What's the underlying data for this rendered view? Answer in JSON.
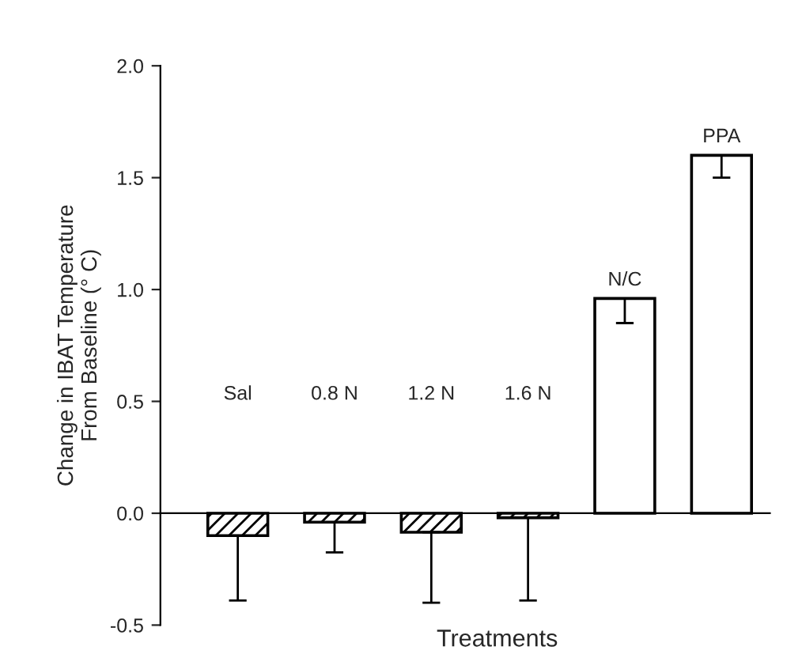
{
  "chart_data": {
    "type": "bar",
    "xlabel": "Treatments",
    "ylabel": "Change in IBAT Temperature\nFrom Baseline (° C)",
    "categories": [
      "Sal",
      "0.8 N",
      "1.2 N",
      "1.6 N",
      "N/C",
      "PPA"
    ],
    "values": [
      -0.1,
      -0.04,
      -0.085,
      -0.02,
      0.96,
      1.6
    ],
    "errors": [
      [
        -0.39,
        -0.1
      ],
      [
        -0.175,
        -0.04
      ],
      [
        -0.4,
        -0.085
      ],
      [
        -0.39,
        -0.02
      ],
      [
        0.85,
        0.96
      ],
      [
        1.5,
        1.6
      ]
    ],
    "colors": [
      "#000000",
      "#000000",
      "#000000",
      "#000000",
      "#ffffff",
      "#ffffff"
    ],
    "ylim": [
      -0.5,
      2.0
    ],
    "yticks": [
      {
        "value": -0.5,
        "label": "-0.5"
      },
      {
        "value": 0,
        "label": "0.0"
      },
      {
        "value": 0.5,
        "label": "0.5"
      },
      {
        "value": 1,
        "label": "1.0"
      },
      {
        "value": 1.5,
        "label": "1.5"
      },
      {
        "value": 2,
        "label": "2.0"
      }
    ],
    "tick_labels": "y"
  }
}
